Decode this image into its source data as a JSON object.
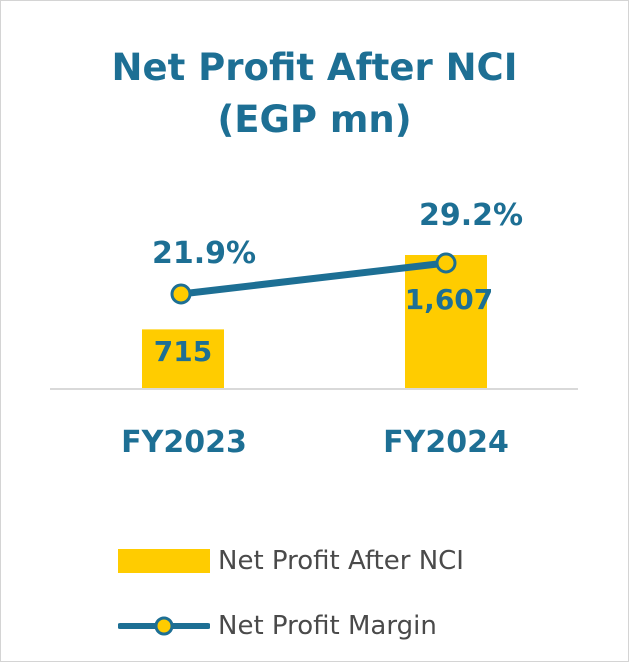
{
  "chart_data": {
    "type": "bar",
    "title_line1": "Net Profit After NCI",
    "title_line2": "(EGP mn)",
    "categories": [
      "FY2023",
      "FY2024"
    ],
    "series": [
      {
        "name": "Net Profit After NCI",
        "type": "bar",
        "values": [
          715,
          1607
        ],
        "labels": [
          "715",
          "1,607"
        ],
        "color": "#ffcc00"
      },
      {
        "name": "Net Profit Margin",
        "type": "line",
        "values": [
          21.9,
          29.2
        ],
        "labels": [
          "21.9%",
          "29.2%"
        ],
        "color": "#1d6f94",
        "marker_fill": "#ffcc00"
      }
    ],
    "legend_position": "bottom",
    "grid": false
  },
  "colors": {
    "title": "#1d6f94",
    "bar": "#ffcc00",
    "line": "#1d6f94",
    "legend_text": "#4a4a4a"
  }
}
